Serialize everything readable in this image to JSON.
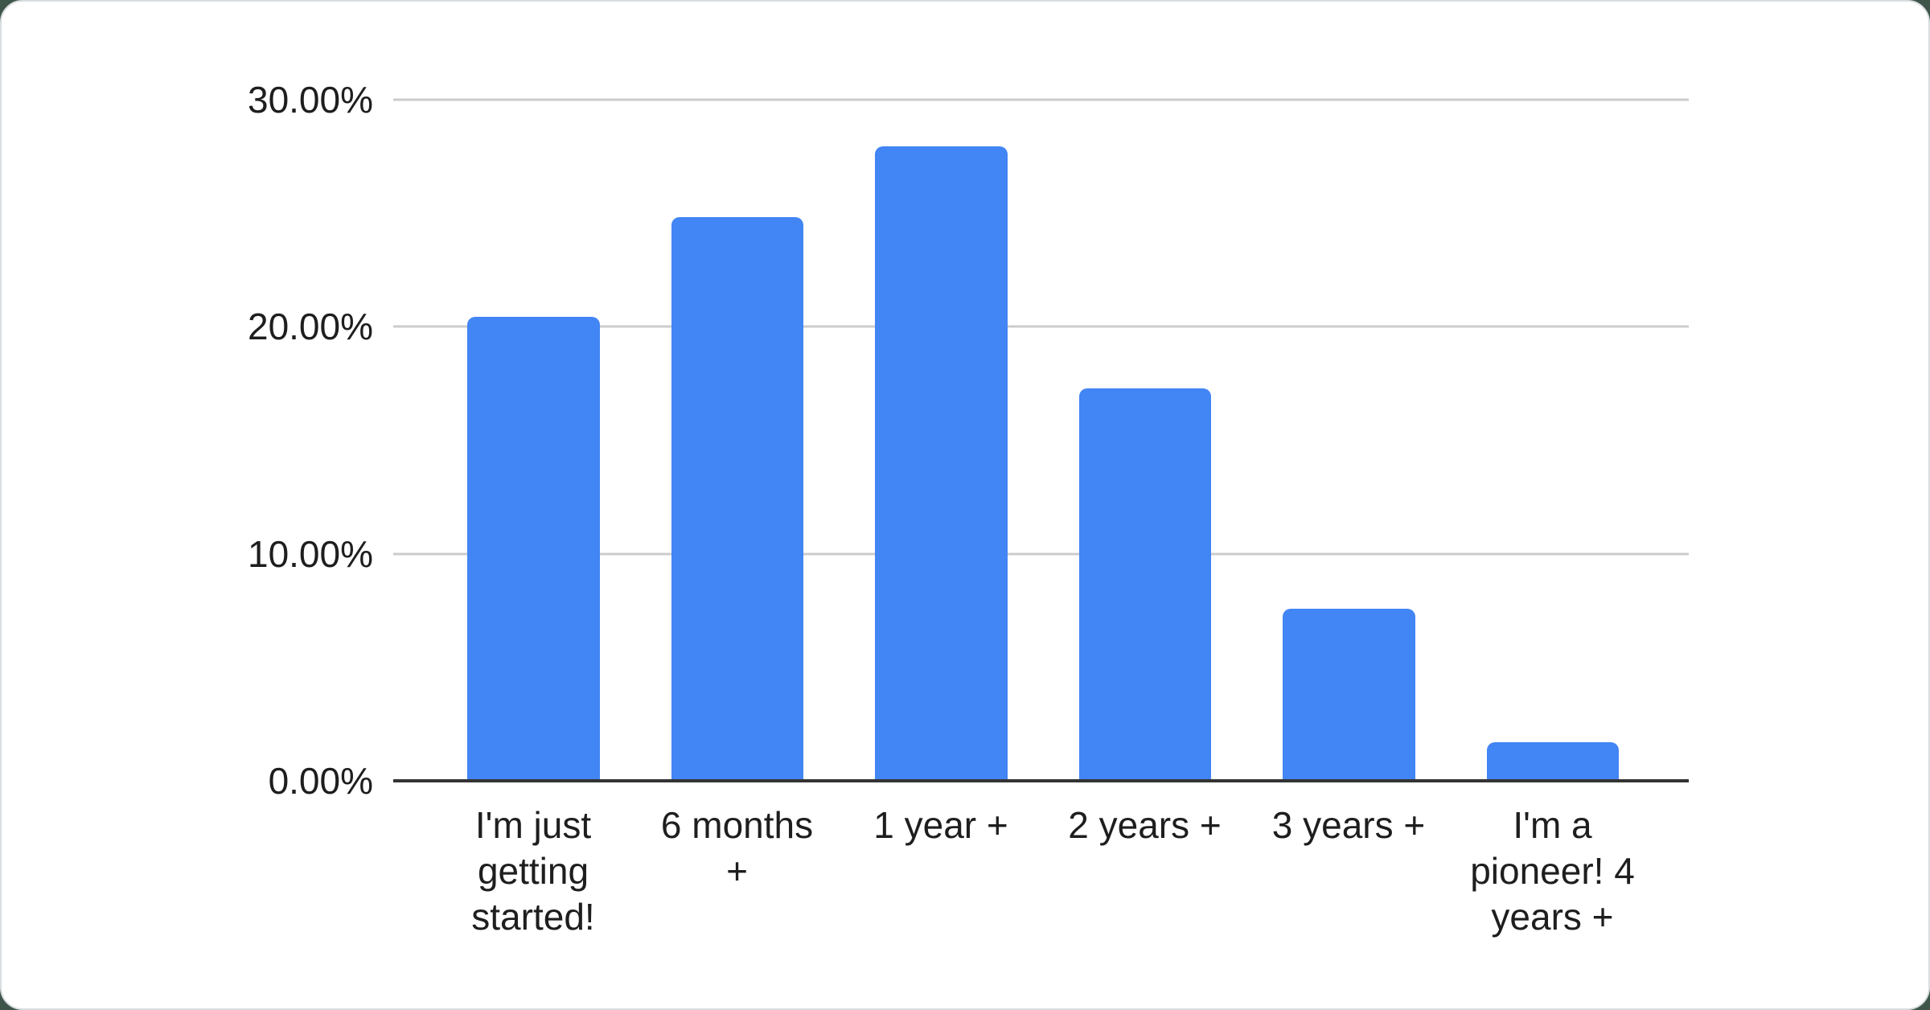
{
  "chart_data": {
    "type": "bar",
    "categories": [
      "I'm just getting started!",
      "6 months +",
      "1 year +",
      "2 years +",
      "3 years +",
      "I'm a pioneer! 4 years +"
    ],
    "values": [
      20.45,
      24.83,
      27.95,
      17.29,
      7.58,
      1.7
    ],
    "unit": "%",
    "ylim": [
      0,
      30
    ],
    "yticks": [
      {
        "value": 30,
        "label": "30.00%"
      },
      {
        "value": 20,
        "label": "20.00%"
      },
      {
        "value": 10,
        "label": "10.00%"
      },
      {
        "value": 0,
        "label": "0.00%"
      }
    ],
    "grid": true,
    "legend": "none",
    "xlabel": "",
    "ylabel": ""
  },
  "colors": {
    "bar": "#4285f4",
    "gridline": "#cccccc",
    "axis_line": "#333333",
    "text": "#1e1e1e",
    "card_background": "#ffffff",
    "card_border": "#d9dde0",
    "page_background": "#3e5649"
  }
}
